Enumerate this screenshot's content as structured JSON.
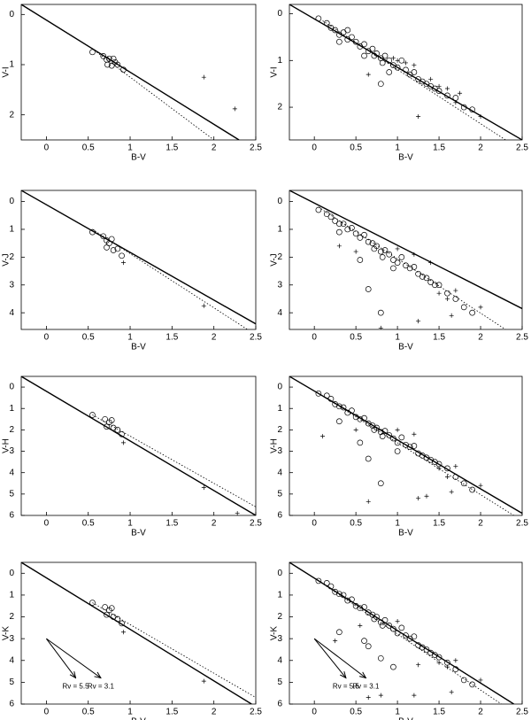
{
  "chart_data": [
    {
      "type": "scatter",
      "xlabel": "B-V",
      "ylabel": "V-I",
      "xlim": [
        -0.3,
        2.5
      ],
      "ylim": [
        -0.2,
        2.5
      ],
      "y_inverted": true,
      "xticks": [
        0,
        0.5,
        1,
        1.5,
        2,
        2.5
      ],
      "yticks": [
        0,
        1,
        2
      ],
      "series": [
        {
          "marker": "circle",
          "x": [
            0.55,
            0.68,
            0.72,
            0.75,
            0.73,
            0.78,
            0.82,
            0.85,
            0.8,
            0.92
          ],
          "values": [
            0.75,
            0.83,
            0.9,
            0.88,
            1.0,
            1.02,
            0.95,
            1.0,
            0.88,
            1.1
          ]
        },
        {
          "marker": "plus",
          "x": [
            1.88,
            2.25
          ],
          "values": [
            1.25,
            1.88
          ]
        },
        {
          "marker": "none",
          "style": "solid",
          "x": [
            -0.3,
            2.3
          ],
          "values": [
            -0.2,
            2.5
          ]
        },
        {
          "marker": "none",
          "style": "dotted",
          "x": [
            0.6,
            2.0
          ],
          "values": [
            0.75,
            2.5
          ]
        }
      ]
    },
    {
      "type": "scatter",
      "xlabel": "B-V",
      "ylabel": "V-I",
      "xlim": [
        -0.3,
        2.5
      ],
      "ylim": [
        -0.2,
        2.7
      ],
      "y_inverted": true,
      "xticks": [
        0,
        0.5,
        1,
        1.5,
        2,
        2.5
      ],
      "yticks": [
        0,
        1,
        2
      ],
      "series": [
        {
          "marker": "circle",
          "x": [
            0.05,
            0.15,
            0.2,
            0.25,
            0.3,
            0.35,
            0.4,
            0.45,
            0.5,
            0.55,
            0.6,
            0.65,
            0.7,
            0.72,
            0.75,
            0.8,
            0.82,
            0.85,
            0.9,
            0.95,
            1.0,
            1.05,
            1.1,
            1.15,
            1.2,
            1.25,
            1.3,
            1.35,
            1.4,
            1.45,
            1.5,
            1.6,
            1.7,
            1.8,
            1.9,
            0.4,
            0.6,
            0.9,
            0.8,
            0.3
          ],
          "values": [
            0.1,
            0.2,
            0.3,
            0.35,
            0.45,
            0.4,
            0.55,
            0.5,
            0.6,
            0.7,
            0.65,
            0.8,
            0.75,
            0.9,
            0.85,
            0.95,
            1.05,
            0.9,
            1.0,
            1.1,
            1.15,
            1.0,
            1.2,
            1.3,
            1.25,
            1.4,
            1.45,
            1.5,
            1.55,
            1.6,
            1.65,
            1.75,
            1.8,
            2.0,
            2.05,
            0.35,
            0.9,
            1.25,
            1.5,
            0.6
          ]
        },
        {
          "marker": "plus",
          "x": [
            0.65,
            1.0,
            1.1,
            1.2,
            1.25,
            1.4,
            1.5,
            1.6,
            1.7,
            1.75,
            2.0,
            0.95
          ],
          "values": [
            1.3,
            1.0,
            1.05,
            1.1,
            2.2,
            1.4,
            1.55,
            1.6,
            1.9,
            1.7,
            2.2,
            0.95
          ]
        },
        {
          "marker": "none",
          "style": "solid",
          "x": [
            -0.3,
            2.5
          ],
          "values": [
            -0.2,
            2.7
          ]
        },
        {
          "marker": "none",
          "style": "dotted",
          "x": [
            0.1,
            2.3
          ],
          "values": [
            0.15,
            2.7
          ]
        }
      ]
    },
    {
      "type": "scatter",
      "xlabel": "B-V",
      "ylabel": "V-J",
      "xlim": [
        -0.3,
        2.5
      ],
      "ylim": [
        -0.4,
        4.6
      ],
      "y_inverted": true,
      "xticks": [
        0,
        0.5,
        1,
        1.5,
        2,
        2.5
      ],
      "yticks": [
        0,
        1,
        2,
        3,
        4
      ],
      "series": [
        {
          "marker": "circle",
          "x": [
            0.55,
            0.68,
            0.72,
            0.75,
            0.72,
            0.8,
            0.85,
            0.9,
            0.78
          ],
          "values": [
            1.1,
            1.25,
            1.4,
            1.5,
            1.65,
            1.75,
            1.7,
            1.95,
            1.35
          ]
        },
        {
          "marker": "plus",
          "x": [
            0.92,
            1.88
          ],
          "values": [
            2.2,
            3.75
          ]
        },
        {
          "marker": "none",
          "style": "solid",
          "x": [
            -0.3,
            2.5
          ],
          "values": [
            -0.4,
            4.4
          ]
        },
        {
          "marker": "none",
          "style": "dotted",
          "x": [
            0.55,
            2.4
          ],
          "values": [
            1.0,
            4.6
          ]
        }
      ]
    },
    {
      "type": "scatter",
      "xlabel": "B-V",
      "ylabel": "V-J",
      "xlim": [
        -0.3,
        2.5
      ],
      "ylim": [
        -0.4,
        4.6
      ],
      "y_inverted": true,
      "xticks": [
        0,
        0.5,
        1,
        1.5,
        2,
        2.5
      ],
      "yticks": [
        0,
        1,
        2,
        3,
        4
      ],
      "series": [
        {
          "marker": "circle",
          "x": [
            0.05,
            0.15,
            0.2,
            0.25,
            0.3,
            0.35,
            0.4,
            0.45,
            0.5,
            0.55,
            0.6,
            0.65,
            0.7,
            0.72,
            0.75,
            0.8,
            0.82,
            0.85,
            0.9,
            0.95,
            1.0,
            1.05,
            1.1,
            1.15,
            1.2,
            1.25,
            1.3,
            1.35,
            1.4,
            1.45,
            1.5,
            1.6,
            1.7,
            1.8,
            1.9,
            0.65,
            0.8,
            0.55,
            0.95,
            0.3
          ],
          "values": [
            0.3,
            0.45,
            0.55,
            0.7,
            0.8,
            0.8,
            1.0,
            0.95,
            1.15,
            1.3,
            1.2,
            1.45,
            1.5,
            1.7,
            1.6,
            1.8,
            2.0,
            1.75,
            1.9,
            2.1,
            2.2,
            2.0,
            2.3,
            2.4,
            2.35,
            2.6,
            2.7,
            2.75,
            2.9,
            3.0,
            3.0,
            3.3,
            3.5,
            3.8,
            4.0,
            3.15,
            4.0,
            2.1,
            2.4,
            1.1
          ]
        },
        {
          "marker": "plus",
          "x": [
            0.3,
            0.5,
            0.8,
            1.0,
            1.2,
            1.25,
            1.4,
            1.5,
            1.6,
            1.65,
            1.7,
            2.0
          ],
          "values": [
            1.6,
            1.8,
            4.55,
            1.7,
            1.9,
            4.3,
            2.2,
            3.3,
            3.5,
            4.1,
            3.2,
            3.8
          ]
        },
        {
          "marker": "none",
          "style": "solid",
          "x": [
            -0.3,
            2.5
          ],
          "values": [
            -0.4,
            3.85
          ]
        },
        {
          "marker": "none",
          "style": "dotted",
          "x": [
            0.05,
            2.3
          ],
          "values": [
            0.2,
            4.6
          ]
        }
      ]
    },
    {
      "type": "scatter",
      "xlabel": "B-V",
      "ylabel": "V-H",
      "xlim": [
        -0.3,
        2.5
      ],
      "ylim": [
        -0.5,
        6
      ],
      "y_inverted": true,
      "xticks": [
        0,
        0.5,
        1,
        1.5,
        2,
        2.5
      ],
      "yticks": [
        0,
        1,
        2,
        3,
        4,
        5,
        6
      ],
      "series": [
        {
          "marker": "circle",
          "x": [
            0.55,
            0.7,
            0.75,
            0.72,
            0.8,
            0.85,
            0.9,
            0.78
          ],
          "values": [
            1.3,
            1.5,
            1.65,
            1.85,
            1.9,
            2.0,
            2.2,
            1.55
          ]
        },
        {
          "marker": "plus",
          "x": [
            0.92,
            1.88,
            2.28
          ],
          "values": [
            2.6,
            4.7,
            5.9
          ]
        },
        {
          "marker": "none",
          "style": "solid",
          "x": [
            -0.3,
            2.5
          ],
          "values": [
            -0.5,
            6
          ]
        },
        {
          "marker": "none",
          "style": "dotted",
          "x": [
            0.55,
            2.5
          ],
          "values": [
            1.3,
            5.6
          ]
        }
      ]
    },
    {
      "type": "scatter",
      "xlabel": "B-V",
      "ylabel": "V-H",
      "xlim": [
        -0.3,
        2.5
      ],
      "ylim": [
        -0.5,
        6
      ],
      "y_inverted": true,
      "xticks": [
        0,
        0.5,
        1,
        1.5,
        2,
        2.5
      ],
      "yticks": [
        0,
        1,
        2,
        3,
        4,
        5,
        6
      ],
      "series": [
        {
          "marker": "circle",
          "x": [
            0.05,
            0.15,
            0.2,
            0.25,
            0.3,
            0.35,
            0.4,
            0.45,
            0.5,
            0.55,
            0.6,
            0.65,
            0.7,
            0.72,
            0.75,
            0.8,
            0.82,
            0.85,
            0.9,
            0.95,
            1.0,
            1.05,
            1.1,
            1.15,
            1.2,
            1.25,
            1.3,
            1.35,
            1.4,
            1.45,
            1.5,
            1.6,
            1.7,
            1.8,
            1.9,
            0.8,
            0.65,
            0.3,
            0.55,
            1.0
          ],
          "values": [
            0.3,
            0.4,
            0.55,
            0.8,
            0.9,
            0.95,
            1.2,
            1.1,
            1.4,
            1.5,
            1.45,
            1.7,
            1.8,
            2.0,
            1.9,
            2.1,
            2.3,
            2.05,
            2.25,
            2.4,
            2.6,
            2.35,
            2.7,
            2.8,
            2.75,
            3.1,
            3.2,
            3.3,
            3.4,
            3.5,
            3.6,
            3.8,
            4.2,
            4.5,
            4.8,
            4.5,
            3.35,
            1.6,
            2.6,
            3.0
          ]
        },
        {
          "marker": "plus",
          "x": [
            0.1,
            0.5,
            0.65,
            1.0,
            1.2,
            1.25,
            1.35,
            1.5,
            1.6,
            1.65,
            1.7,
            2.0
          ],
          "values": [
            2.3,
            2.0,
            5.35,
            2.0,
            2.2,
            5.2,
            5.1,
            3.8,
            4.2,
            4.9,
            3.7,
            4.6
          ]
        },
        {
          "marker": "none",
          "style": "solid",
          "x": [
            -0.3,
            2.5
          ],
          "values": [
            -0.5,
            5.9
          ]
        },
        {
          "marker": "none",
          "style": "dotted",
          "x": [
            0.05,
            2.4
          ],
          "values": [
            0.3,
            6
          ]
        }
      ]
    },
    {
      "type": "scatter",
      "xlabel": "B-V",
      "ylabel": "V-K",
      "xlim": [
        -0.3,
        2.5
      ],
      "ylim": [
        -0.5,
        6
      ],
      "y_inverted": true,
      "xticks": [
        0,
        0.5,
        1,
        1.5,
        2,
        2.5
      ],
      "yticks": [
        0,
        1,
        2,
        3,
        4,
        5,
        6
      ],
      "series": [
        {
          "marker": "circle",
          "x": [
            0.55,
            0.7,
            0.75,
            0.72,
            0.8,
            0.85,
            0.9,
            0.78
          ],
          "values": [
            1.35,
            1.55,
            1.7,
            1.9,
            2.0,
            2.1,
            2.3,
            1.6
          ]
        },
        {
          "marker": "plus",
          "x": [
            0.92,
            1.88
          ],
          "values": [
            2.7,
            4.95
          ]
        },
        {
          "marker": "none",
          "style": "solid",
          "x": [
            -0.3,
            2.45
          ],
          "values": [
            -0.5,
            6
          ]
        },
        {
          "marker": "none",
          "style": "dotted",
          "x": [
            0.55,
            2.5
          ],
          "values": [
            1.35,
            5.7
          ]
        }
      ],
      "arrows": [
        {
          "label": "Rv = 5.5",
          "x": [
            0,
            0.35
          ],
          "y": [
            3.0,
            4.8
          ]
        },
        {
          "label": "Rv = 3.1",
          "x": [
            0,
            0.65
          ],
          "y": [
            3.0,
            4.8
          ]
        }
      ]
    },
    {
      "type": "scatter",
      "xlabel": "B-V",
      "ylabel": "V-K",
      "xlim": [
        -0.3,
        2.5
      ],
      "ylim": [
        -0.5,
        6
      ],
      "y_inverted": true,
      "xticks": [
        0,
        0.5,
        1,
        1.5,
        2,
        2.5
      ],
      "yticks": [
        0,
        1,
        2,
        3,
        4,
        5,
        6
      ],
      "series": [
        {
          "marker": "circle",
          "x": [
            0.05,
            0.15,
            0.2,
            0.25,
            0.3,
            0.35,
            0.4,
            0.45,
            0.5,
            0.55,
            0.6,
            0.65,
            0.7,
            0.72,
            0.75,
            0.8,
            0.82,
            0.85,
            0.9,
            0.95,
            1.0,
            1.05,
            1.1,
            1.15,
            1.2,
            1.25,
            1.3,
            1.35,
            1.4,
            1.45,
            1.5,
            1.6,
            1.7,
            1.8,
            1.9,
            0.3,
            0.65,
            0.8,
            0.95,
            0.6
          ],
          "values": [
            0.35,
            0.45,
            0.6,
            0.85,
            0.95,
            1.0,
            1.25,
            1.2,
            1.5,
            1.6,
            1.55,
            1.8,
            1.9,
            2.1,
            2.0,
            2.25,
            2.4,
            2.15,
            2.4,
            2.55,
            2.75,
            2.5,
            2.85,
            3.0,
            2.9,
            3.3,
            3.4,
            3.5,
            3.65,
            3.75,
            3.85,
            4.1,
            4.4,
            4.9,
            5.1,
            2.7,
            3.35,
            3.9,
            4.3,
            3.1
          ]
        },
        {
          "marker": "plus",
          "x": [
            0.55,
            0.25,
            0.65,
            0.8,
            1.0,
            1.2,
            1.25,
            1.5,
            1.6,
            1.65,
            1.7,
            2.0
          ],
          "values": [
            2.4,
            3.1,
            5.7,
            5.6,
            2.2,
            5.6,
            4.2,
            4.1,
            4.3,
            5.45,
            4.0,
            4.9
          ]
        },
        {
          "marker": "none",
          "style": "solid",
          "x": [
            -0.3,
            2.4
          ],
          "values": [
            -0.5,
            6
          ]
        },
        {
          "marker": "none",
          "style": "dotted",
          "x": [
            0.05,
            2.25
          ],
          "values": [
            0.35,
            6
          ]
        }
      ],
      "arrows": [
        {
          "label": "Rv = 5.5",
          "x": [
            0,
            0.38
          ],
          "y": [
            3.0,
            4.8
          ]
        },
        {
          "label": "Rv = 3.1",
          "x": [
            0,
            0.62
          ],
          "y": [
            3.0,
            4.8
          ]
        }
      ]
    }
  ]
}
